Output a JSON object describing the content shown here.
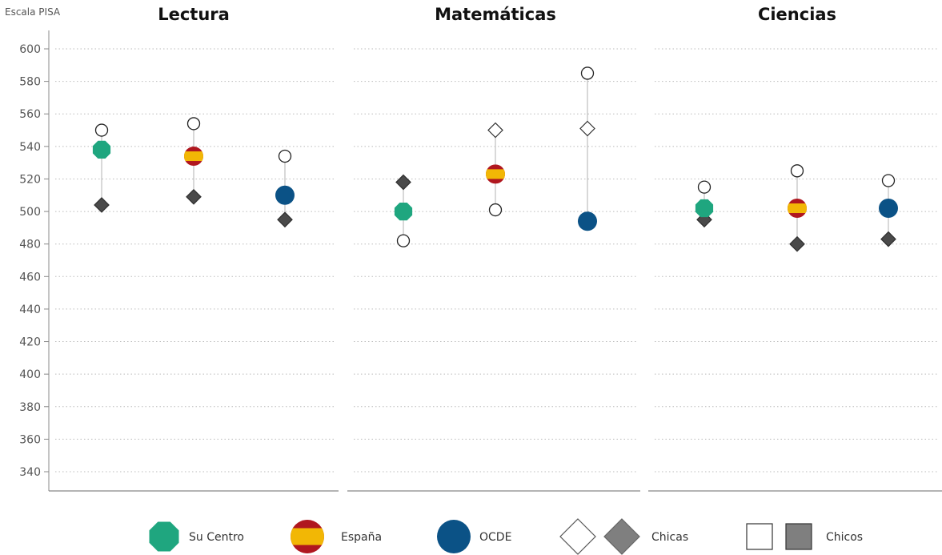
{
  "chart_data": {
    "type": "scatter",
    "ylabel": "Escala PISA",
    "ylim": [
      330,
      610
    ],
    "yticks": [
      340,
      360,
      380,
      400,
      420,
      440,
      460,
      480,
      500,
      520,
      540,
      560,
      580,
      600
    ],
    "grid": true,
    "panels": [
      {
        "title": "Lectura",
        "groups": [
          {
            "series": "Su Centro",
            "mean": 538,
            "chicas": 550,
            "chicos": 504,
            "chicas_shape": "circle",
            "chicos_shape": "diamond"
          },
          {
            "series": "España",
            "mean": 534,
            "chicas": 554,
            "chicos": 509,
            "chicas_shape": "circle",
            "chicos_shape": "diamond"
          },
          {
            "series": "OCDE",
            "mean": 510,
            "chicas": 534,
            "chicos": 495,
            "chicas_shape": "circle",
            "chicos_shape": "diamond"
          }
        ]
      },
      {
        "title": "Matemáticas",
        "groups": [
          {
            "series": "Su Centro",
            "mean": 500,
            "chicas": 482,
            "chicos": 518,
            "chicas_shape": "circle",
            "chicos_shape": "diamond"
          },
          {
            "series": "España",
            "mean": 523,
            "chicas": 501,
            "chicos": 550,
            "chicas_shape": "circle",
            "chicos_shape": "diamond-open"
          },
          {
            "series": "OCDE",
            "mean": 494,
            "chicas": 585,
            "chicos": 551,
            "chicas_shape": "circle",
            "chicos_shape": "diamond-open"
          }
        ]
      },
      {
        "title": "Ciencias",
        "groups": [
          {
            "series": "Su Centro",
            "mean": 502,
            "chicas": 515,
            "chicos": 495,
            "chicas_shape": "circle",
            "chicos_shape": "diamond"
          },
          {
            "series": "España",
            "mean": 502,
            "chicas": 525,
            "chicos": 480,
            "chicas_shape": "circle",
            "chicos_shape": "diamond"
          },
          {
            "series": "OCDE",
            "mean": 502,
            "chicas": 519,
            "chicos": 483,
            "chicas_shape": "circle",
            "chicos_shape": "diamond"
          }
        ]
      }
    ],
    "legend": {
      "placement": "bottom",
      "items": [
        {
          "label": "Su Centro",
          "marker": "green-octagon"
        },
        {
          "label": "España",
          "marker": "spain-flag-circle"
        },
        {
          "label": "OCDE",
          "marker": "blue-circle"
        },
        {
          "label": "Chicas",
          "marker": "diamond-pair"
        },
        {
          "label": "Chicos",
          "marker": "square-pair"
        }
      ]
    },
    "colors": {
      "su_centro": "#1fa67f",
      "ocde": "#0b5286",
      "spain_red": "#b0171f",
      "spain_yellow": "#f2b705",
      "diamond_fill": "#4a4a4a",
      "legend_gray": "#7f7f7f",
      "range_line": "#bfbfbf",
      "grid": "#bbbbbb",
      "axis": "#888888"
    }
  }
}
